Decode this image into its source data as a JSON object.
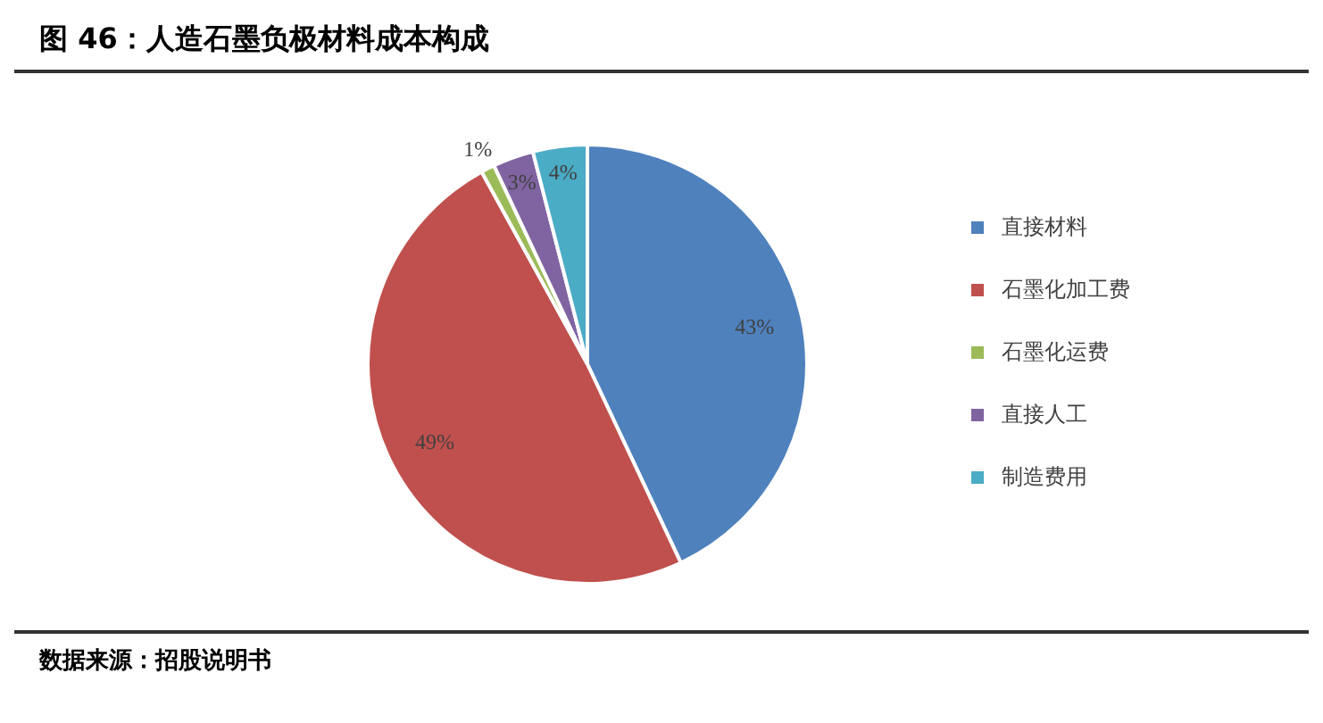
{
  "chart_data": {
    "type": "pie",
    "title": "图 46：人造石墨负极材料成本构成",
    "categories": [
      "直接材料",
      "石墨化加工费",
      "石墨化运费",
      "直接人工",
      "制造费用"
    ],
    "values": [
      43,
      49,
      1,
      3,
      4
    ],
    "value_labels": [
      "43%",
      "49%",
      "1%",
      "3%",
      "4%"
    ],
    "colors": [
      "#4f81bd",
      "#c0504d",
      "#9bbb59",
      "#8064a2",
      "#4bacc6"
    ],
    "legend": "right",
    "annotations": [
      "数据来源：招股说明书"
    ]
  }
}
